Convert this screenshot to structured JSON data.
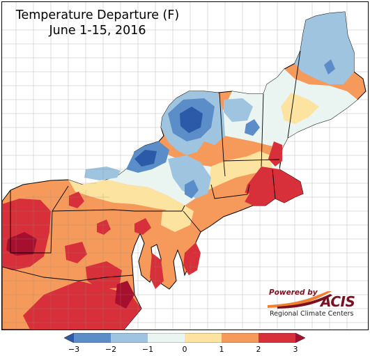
{
  "map": {
    "title": "Temperature Departure (F)",
    "subtitle": "June 1-15, 2016",
    "region": "Northeast United States",
    "water_color": "#ffffff",
    "boundary_color": "#000000",
    "county_line_color": "#8a8a8a"
  },
  "legend": {
    "colors": [
      "#2c5aa8",
      "#5b8ec8",
      "#9fc4e0",
      "#eaf5f2",
      "#fde3a0",
      "#f59a5a",
      "#d8303a",
      "#a60f2e"
    ],
    "ticks": [
      "−3",
      "−2",
      "−1",
      "0",
      "1",
      "2",
      "3"
    ],
    "tick_values": [
      -3,
      -2,
      -1,
      0,
      1,
      2,
      3
    ]
  },
  "logo": {
    "powered_by": "Powered by",
    "name": "ACIS",
    "org": "Regional Climate Centers"
  }
}
